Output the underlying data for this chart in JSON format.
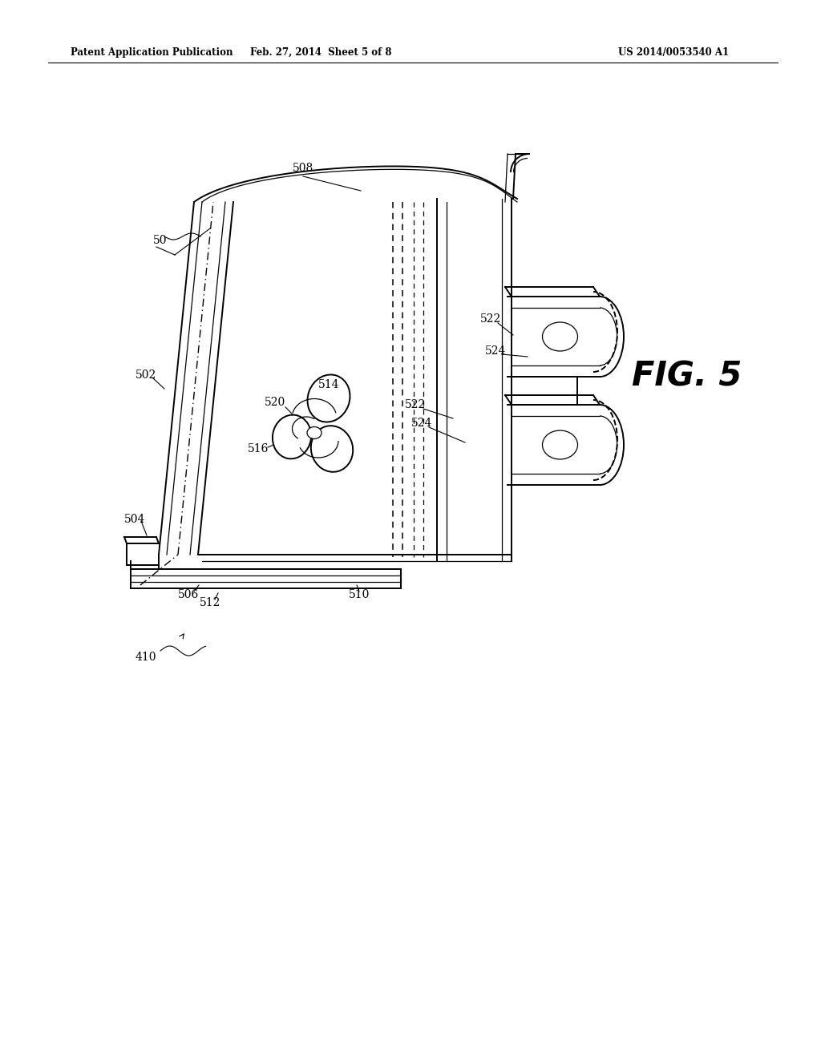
{
  "background_color": "#ffffff",
  "header_left": "Patent Application Publication",
  "header_center": "Feb. 27, 2014  Sheet 5 of 8",
  "header_right": "US 2014/0053540 A1",
  "fig_label": "FIG. 5"
}
